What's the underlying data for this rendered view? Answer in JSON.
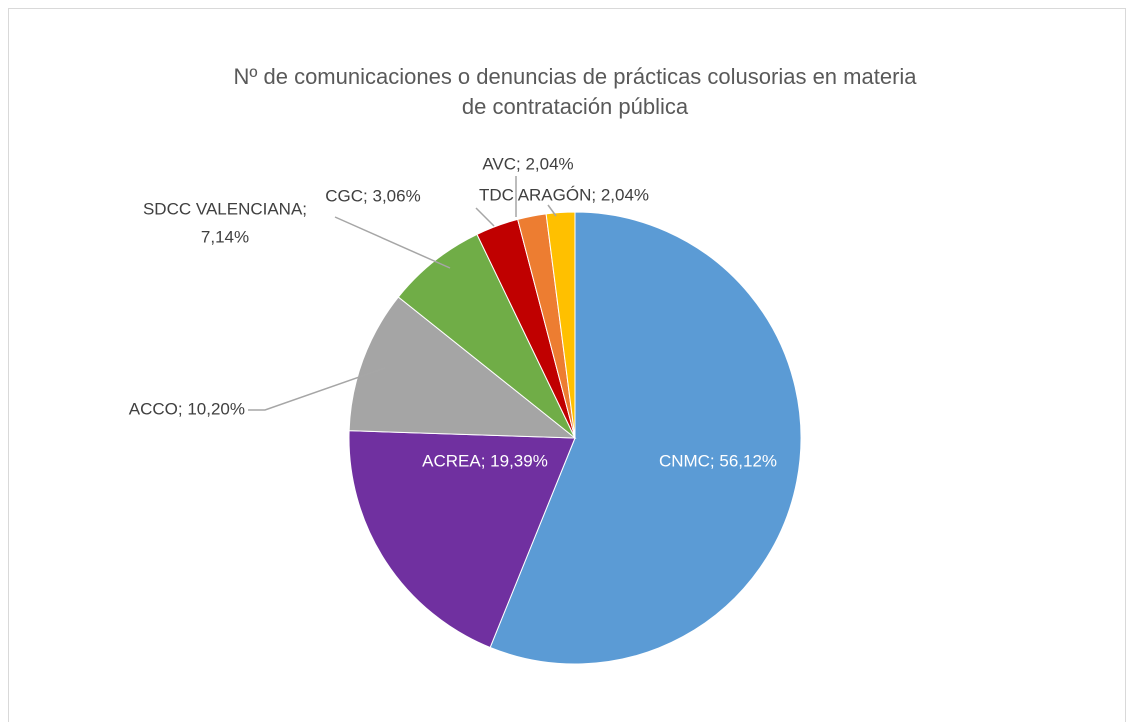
{
  "chart_data": {
    "type": "pie",
    "title": [
      "Nº de comunicaciones o denuncias de prácticas colusorias en materia",
      "de contratación pública"
    ],
    "values": [
      56.12,
      19.39,
      10.2,
      7.14,
      3.06,
      2.04,
      2.04
    ],
    "value_labels": [
      "CNMC; 56,12%",
      "ACREA; 19,39%",
      "ACCO; 10,20%",
      [
        "SDCC VALENCIANA;",
        "7,14%"
      ],
      "CGC; 3,06%",
      "AVC; 2,04%",
      "TDC ARAGÓN; 2,04%"
    ],
    "colors": [
      "#5b9bd5",
      "#7030a0",
      "#a5a5a5",
      "#70ad47",
      "#c00000",
      "#ed7d31",
      "#ffc000"
    ]
  }
}
